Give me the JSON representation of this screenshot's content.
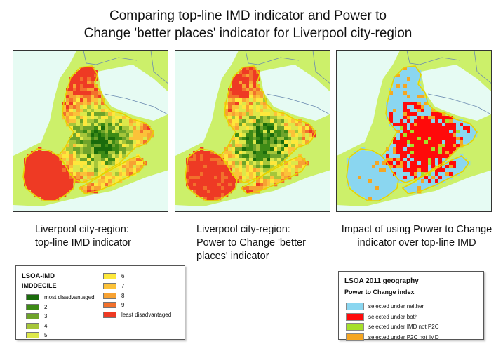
{
  "title": {
    "line1": "Comparing top-line IMD indicator and Power to",
    "line2": "Change 'better places' indicator for Liverpool city-region"
  },
  "maps": [
    {
      "caption_lines": [
        "Liverpool city-region:",
        "top-line IMD indicator"
      ],
      "scheme": "decile"
    },
    {
      "caption_lines": [
        "Liverpool city-region:",
        "Power to Change 'better",
        "places' indicator"
      ],
      "scheme": "decile"
    },
    {
      "caption_lines": [
        "Impact of using Power to Change",
        "indicator over top-line IMD"
      ],
      "scheme": "impact"
    }
  ],
  "legend_decile": {
    "title": "LSOA-IMD",
    "subtitle": "IMDDECILE",
    "items": [
      {
        "label": "most disadvantaged",
        "color": "#1a6b0c"
      },
      {
        "label": "2",
        "color": "#3d8a16"
      },
      {
        "label": "3",
        "color": "#6ea32b"
      },
      {
        "label": "4",
        "color": "#a6c63a"
      },
      {
        "label": "5",
        "color": "#dde84a"
      },
      {
        "label": "6",
        "color": "#fde83c"
      },
      {
        "label": "7",
        "color": "#fbc239"
      },
      {
        "label": "8",
        "color": "#f7a233"
      },
      {
        "label": "9",
        "color": "#f2712c"
      },
      {
        "label": "least disadvantaged",
        "color": "#ee3a24"
      }
    ]
  },
  "legend_impact": {
    "title": "LSOA 2011 geography",
    "subtitle": "Power to Change index",
    "items": [
      {
        "label": "selected under neither",
        "color": "#8ad6f0"
      },
      {
        "label": "selected under both",
        "color": "#ff0a0a"
      },
      {
        "label": "selected under IMD not P2C",
        "color": "#a6e02a"
      },
      {
        "label": "selected under P2C not IMD",
        "color": "#f5a623"
      }
    ]
  },
  "map_colors": {
    "land": "#ccf06a",
    "sea": "#e6fbf3",
    "boundary": "#e8d300",
    "river": "#6a8ab0"
  }
}
